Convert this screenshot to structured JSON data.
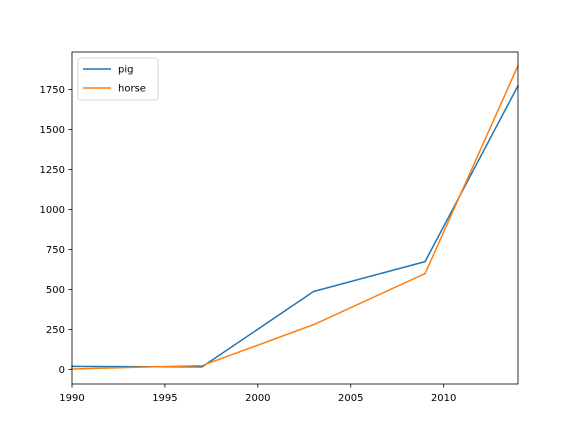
{
  "chart_data": {
    "type": "line",
    "title": "",
    "xlabel": "",
    "ylabel": "",
    "xlim": [
      1990,
      2014
    ],
    "ylim": [
      -90,
      1985
    ],
    "x_ticks": [
      1990,
      1995,
      2000,
      2005,
      2010
    ],
    "y_ticks": [
      0,
      250,
      500,
      750,
      1000,
      1250,
      1500,
      1750
    ],
    "grid": false,
    "legend_position": "top-left",
    "x": [
      1990,
      1997,
      2003,
      2009,
      2014
    ],
    "series": [
      {
        "name": "pig",
        "color": "#1f77b4",
        "values": [
          20,
          17,
          488,
          675,
          1774
        ]
      },
      {
        "name": "horse",
        "color": "#ff7f0e",
        "values": [
          4,
          25,
          281,
          600,
          1900
        ]
      }
    ]
  }
}
